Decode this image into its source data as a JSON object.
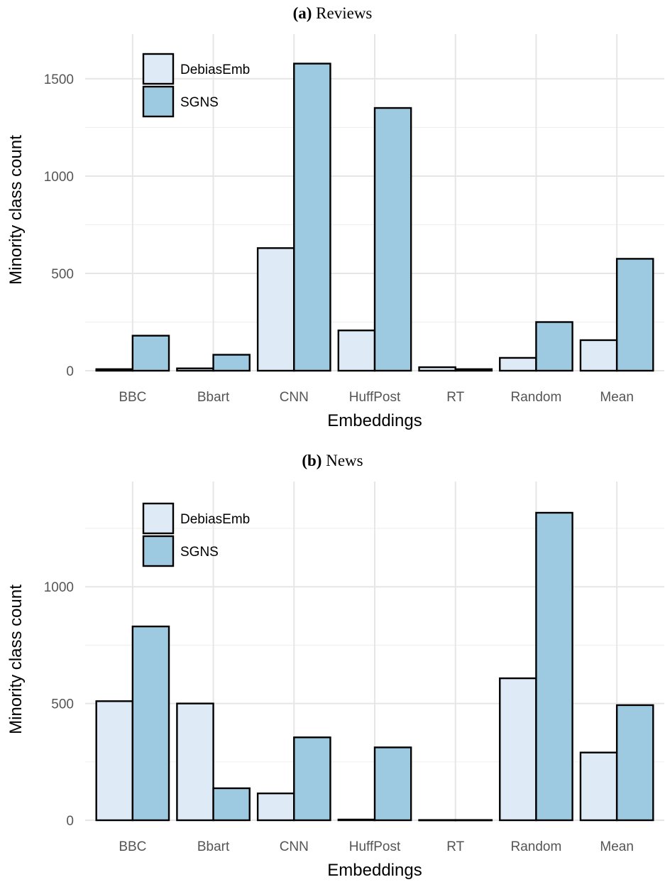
{
  "chart_data": [
    {
      "type": "bar",
      "panel_tag": "(a)",
      "title": "Reviews",
      "xlabel": "Embeddings",
      "ylabel": "Minority class count",
      "categories": [
        "BBC",
        "Bbart",
        "CNN",
        "HuffPost",
        "RT",
        "Random",
        "Mean"
      ],
      "series": [
        {
          "name": "DebiasEmb",
          "color": "#deebf7",
          "values": [
            8,
            12,
            630,
            207,
            18,
            66,
            157
          ]
        },
        {
          "name": "SGNS",
          "color": "#9ecae1",
          "values": [
            180,
            82,
            1578,
            1350,
            8,
            250,
            575
          ]
        }
      ],
      "ylim": [
        0,
        1580
      ],
      "yticks": [
        0,
        500,
        1000,
        1500
      ],
      "grid": true,
      "legend_position": "top-left"
    },
    {
      "type": "bar",
      "panel_tag": "(b)",
      "title": "News",
      "xlabel": "Embeddings",
      "ylabel": "Minority class count",
      "categories": [
        "BBC",
        "Bbart",
        "CNN",
        "HuffPost",
        "RT",
        "Random",
        "Mean"
      ],
      "series": [
        {
          "name": "DebiasEmb",
          "color": "#deebf7",
          "values": [
            510,
            500,
            115,
            3,
            1,
            608,
            290
          ]
        },
        {
          "name": "SGNS",
          "color": "#9ecae1",
          "values": [
            830,
            137,
            355,
            312,
            1,
            1317,
            493
          ]
        }
      ],
      "ylim": [
        0,
        1317
      ],
      "yticks": [
        0,
        500,
        1000
      ],
      "grid": true,
      "legend_position": "top-left"
    }
  ]
}
